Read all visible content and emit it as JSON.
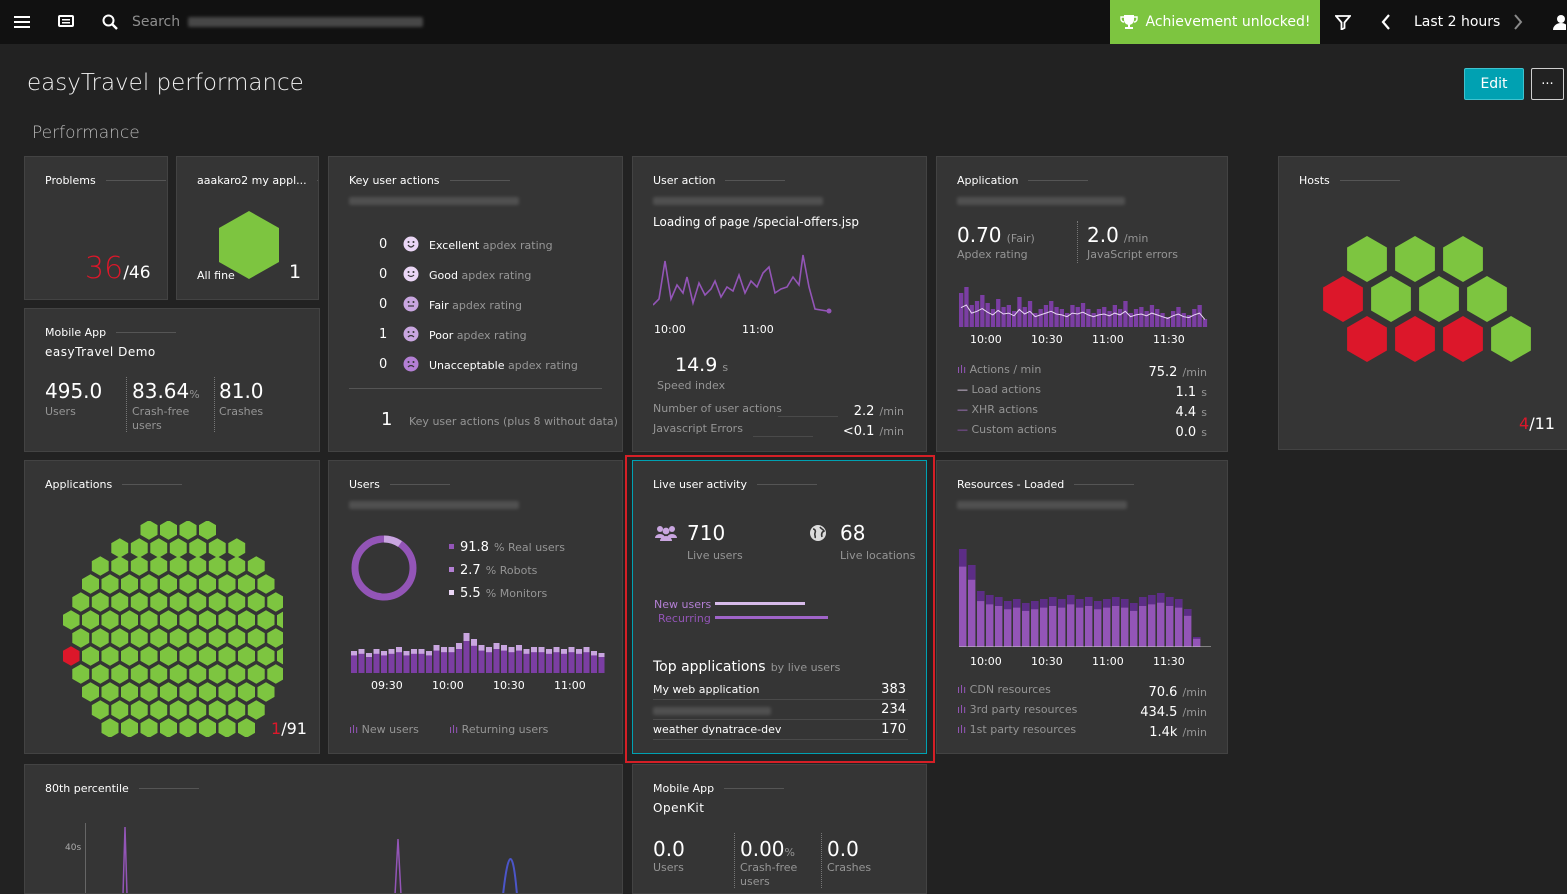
{
  "topbar": {
    "search_placeholder": "Search",
    "achievement": "Achievement unlocked!",
    "timeframe": "Last 2 hours",
    "icons": [
      "menu-icon",
      "screen-icon",
      "search-icon",
      "trophy-icon",
      "filter-icon",
      "chevron-left-icon",
      "chevron-right-icon",
      "user-icon"
    ]
  },
  "page": {
    "title": "easyTravel performance",
    "section": "Performance",
    "edit": "Edit",
    "more": "···"
  },
  "problems": {
    "title": "Problems",
    "count": "36",
    "total": "/46"
  },
  "app_tile": {
    "title": "aaakaro2 my appl...",
    "status": "All fine",
    "count": "1"
  },
  "mobile1": {
    "title": "Mobile App",
    "name": "easyTravel Demo",
    "users": "495.0",
    "users_lbl": "Users",
    "crashfree": "83.64",
    "crashfree_unit": "%",
    "crashfree_lbl1": "Crash-free",
    "crashfree_lbl2": "users",
    "crashes": "81.0",
    "crashes_lbl": "Crashes"
  },
  "key_actions": {
    "title": "Key user actions",
    "rows": [
      {
        "count": "0",
        "label": "Excellent",
        "suffix": "apdex rating"
      },
      {
        "count": "0",
        "label": "Good",
        "suffix": "apdex rating"
      },
      {
        "count": "0",
        "label": "Fair",
        "suffix": "apdex rating"
      },
      {
        "count": "1",
        "label": "Poor",
        "suffix": "apdex rating"
      },
      {
        "count": "0",
        "label": "Unacceptable",
        "suffix": "apdex rating"
      }
    ],
    "footer_count": "1",
    "footer_label": "Key user actions (plus 8 without data)"
  },
  "user_action": {
    "title": "User action",
    "page": "Loading of page /special-offers.jsp",
    "ticks": [
      "10:00",
      "11:00"
    ],
    "speed": "14.9",
    "speed_unit": "s",
    "speed_lbl": "Speed index",
    "rows": [
      {
        "label": "Number of user actions",
        "value": "2.2",
        "unit": "/min"
      },
      {
        "label": "Javascript Errors",
        "value": "<0.1",
        "unit": "/min"
      }
    ]
  },
  "application": {
    "title": "Application",
    "apdex": "0.70",
    "apdex_note": "(Fair)",
    "apdex_lbl": "Apdex rating",
    "js": "2.0",
    "js_unit": "/min",
    "js_lbl": "JavaScript errors",
    "ticks": [
      "10:00",
      "10:30",
      "11:00",
      "11:30"
    ],
    "rows": [
      {
        "label": "Actions / min",
        "value": "75.2",
        "unit": "/min"
      },
      {
        "label": "Load actions",
        "value": "1.1",
        "unit": "s"
      },
      {
        "label": "XHR actions",
        "value": "4.4",
        "unit": "s"
      },
      {
        "label": "Custom actions",
        "value": "0.0",
        "unit": "s"
      }
    ]
  },
  "hosts": {
    "title": "Hosts",
    "bad": "4",
    "total": "/11"
  },
  "applications": {
    "title": "Applications",
    "bad": "1",
    "total": "/91"
  },
  "users": {
    "title": "Users",
    "legend": [
      {
        "value": "91.8",
        "label": "% Real users"
      },
      {
        "value": "2.7",
        "label": "% Robots"
      },
      {
        "value": "5.5",
        "label": "% Monitors"
      }
    ],
    "ticks": [
      "09:30",
      "10:00",
      "10:30",
      "11:00"
    ],
    "new_lbl": "New users",
    "ret_lbl": "Returning users"
  },
  "live": {
    "title": "Live user activity",
    "users": "710",
    "users_lbl": "Live users",
    "locations": "68",
    "locations_lbl": "Live locations",
    "new_lbl": "New users",
    "rec_lbl": "Recurring",
    "top_title": "Top applications",
    "top_sub": "by live users",
    "apps": [
      {
        "name": "My web application",
        "value": "383"
      },
      {
        "name": "",
        "value": "234"
      },
      {
        "name": "weather dynatrace-dev",
        "value": "170"
      }
    ]
  },
  "resources": {
    "title": "Resources - Loaded",
    "ticks": [
      "10:00",
      "10:30",
      "11:00",
      "11:30"
    ],
    "rows": [
      {
        "label": "CDN resources",
        "value": "70.6",
        "unit": "/min"
      },
      {
        "label": "3rd party resources",
        "value": "434.5",
        "unit": "/min"
      },
      {
        "label": "1st party resources",
        "value": "1.4k",
        "unit": "/min"
      }
    ]
  },
  "p80": {
    "title": "80th percentile",
    "ytick": "40s"
  },
  "mobile2": {
    "title": "Mobile App",
    "name": "OpenKit",
    "users": "0.0",
    "users_lbl": "Users",
    "crashfree": "0.00",
    "crashfree_unit": "%",
    "crashfree_lbl1": "Crash-free",
    "crashfree_lbl2": "users",
    "crashes": "0.0",
    "crashes_lbl": "Crashes"
  },
  "colors": {
    "green": "#7dc540",
    "red": "#dc172a",
    "purple": "#9355b7",
    "teal": "#00a1b2"
  }
}
